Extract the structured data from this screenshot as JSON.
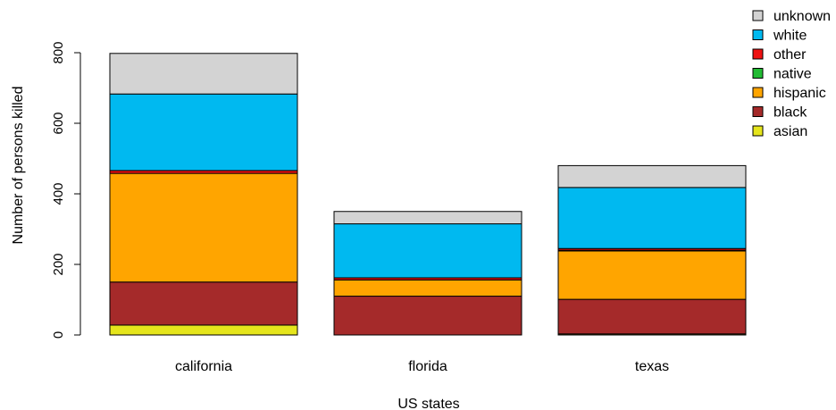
{
  "chart_data": {
    "type": "bar",
    "stacked": true,
    "title": "",
    "xlabel": "US states",
    "ylabel": "Number of persons killed",
    "categories": [
      "california",
      "florida",
      "texas"
    ],
    "ylim": [
      0,
      800
    ],
    "yticks": [
      "0",
      "200",
      "400",
      "600",
      "800"
    ],
    "grid": false,
    "legend_position": "top-right",
    "series": [
      {
        "name": "asian",
        "color": "#e5e51c",
        "values": [
          28,
          0,
          3
        ]
      },
      {
        "name": "black",
        "color": "#a52a2a",
        "values": [
          122,
          110,
          98
        ]
      },
      {
        "name": "hispanic",
        "color": "#ffa500",
        "values": [
          308,
          46,
          137
        ]
      },
      {
        "name": "native",
        "color": "#22bb33",
        "values": [
          0,
          0,
          2
        ]
      },
      {
        "name": "other",
        "color": "#ee1111",
        "values": [
          8,
          6,
          5
        ]
      },
      {
        "name": "white",
        "color": "#00b9f0",
        "values": [
          217,
          153,
          173
        ]
      },
      {
        "name": "unknown",
        "color": "#d3d3d3",
        "values": [
          115,
          35,
          62
        ]
      }
    ]
  }
}
